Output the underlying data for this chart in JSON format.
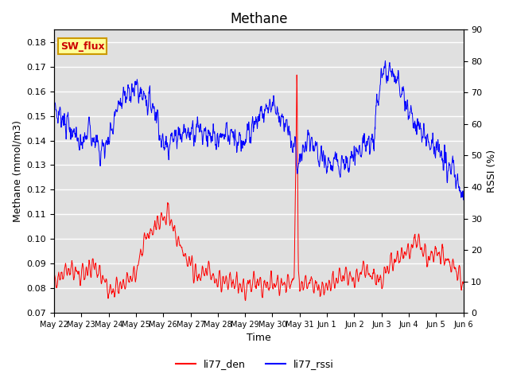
{
  "title": "Methane",
  "ylabel_left": "Methane (mmol/m3)",
  "ylabel_right": "RSSI (%)",
  "xlabel": "Time",
  "ylim_left": [
    0.07,
    0.185
  ],
  "ylim_right": [
    0,
    90
  ],
  "yticks_left": [
    0.07,
    0.08,
    0.09,
    0.1,
    0.11,
    0.12,
    0.13,
    0.14,
    0.15,
    0.16,
    0.17,
    0.18
  ],
  "yticks_right": [
    0,
    10,
    20,
    30,
    40,
    50,
    60,
    70,
    80,
    90
  ],
  "bg_color": "#e0e0e0",
  "fig_bg_color": "#ffffff",
  "grid_color": "#ffffff",
  "line_red": "#ff0000",
  "line_blue": "#0000ff",
  "legend_label_red": "li77_den",
  "legend_label_blue": "li77_rssi",
  "sw_flux_label": "SW_flux",
  "sw_flux_bg": "#ffff99",
  "sw_flux_border": "#cc9900",
  "sw_flux_text_color": "#cc0000",
  "title_fontsize": 12,
  "axis_label_fontsize": 9,
  "tick_fontsize": 8,
  "tick_labels": [
    "May 22",
    "May 23",
    "May 24",
    "May 25",
    "May 26",
    "May 27",
    "May 28",
    "May 29",
    "May 30",
    "May 31",
    "Jun 1",
    "Jun 2",
    "Jun 3",
    "Jun 4",
    "Jun 5",
    "Jun 6"
  ]
}
